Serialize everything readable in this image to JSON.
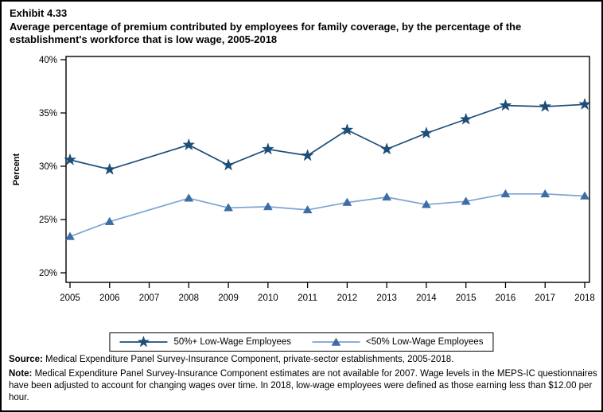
{
  "header": {
    "exhibit_label": "Exhibit 4.33",
    "title": "Average percentage of premium contributed by employees for family coverage, by the percentage of the establishment's workforce that is low wage, 2005-2018"
  },
  "chart_data": {
    "type": "line",
    "x": [
      2005,
      2006,
      2007,
      2008,
      2009,
      2010,
      2011,
      2012,
      2013,
      2014,
      2015,
      2016,
      2017,
      2018
    ],
    "x_tick_labels": [
      "2005",
      "2006",
      "2007",
      "2008",
      "2009",
      "2010",
      "2011",
      "2012",
      "2013",
      "2014",
      "2015",
      "2016",
      "2017",
      "2018"
    ],
    "series": [
      {
        "name": "50%+ Low-Wage Employees",
        "marker": "star",
        "marker_color": "#1d4e79",
        "line_color": "#1d4e79",
        "values": [
          30.6,
          29.7,
          null,
          32.0,
          30.1,
          31.6,
          31.0,
          33.4,
          31.6,
          33.1,
          34.4,
          35.7,
          35.6,
          35.8
        ]
      },
      {
        "name": "<50% Low-Wage Employees",
        "marker": "triangle",
        "marker_color": "#3c6ea5",
        "line_color": "#7ca3d1",
        "values": [
          23.4,
          24.8,
          null,
          27.0,
          26.1,
          26.2,
          25.9,
          26.6,
          27.1,
          26.4,
          26.7,
          27.4,
          27.4,
          27.2
        ]
      }
    ],
    "ylabel": "Percent",
    "ylim": [
      20,
      40
    ],
    "yticks": [
      20,
      25,
      30,
      35,
      40
    ],
    "ytick_suffix": "%",
    "grid": false,
    "legend_position": "bottom",
    "note_missing_year": 2007,
    "axis_color": "#000000"
  },
  "footnotes": {
    "source_label": "Source:",
    "source_text": " Medical Expenditure Panel Survey-Insurance Component, private-sector establishments, 2005-2018.",
    "note_label": "Note:",
    "note_text": " Medical Expenditure Panel Survey-Insurance Component estimates are not available for 2007. Wage levels in the MEPS-IC questionnaires have been adjusted to account for changing wages over time.  In 2018, low-wage employees were defined as those earning less than $12.00 per hour."
  }
}
